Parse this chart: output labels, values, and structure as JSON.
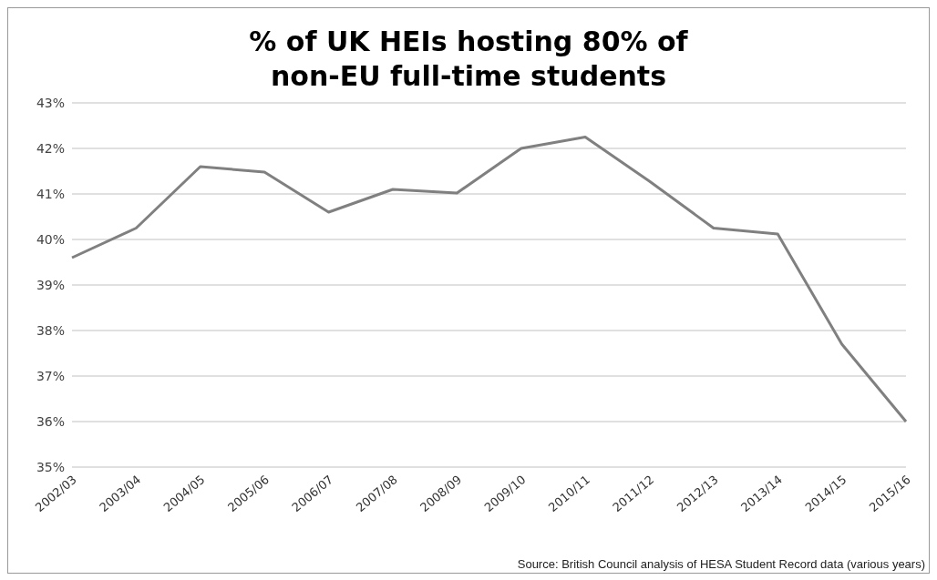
{
  "chart_data": {
    "type": "line",
    "title": "% of UK HEIs hosting 80% of non-EU full-time students",
    "categories": [
      "2002/03",
      "2003/04",
      "2004/05",
      "2005/06",
      "2006/07",
      "2007/08",
      "2008/09",
      "2009/10",
      "2010/11",
      "2011/12",
      "2012/13",
      "2013/14",
      "2014/15",
      "2015/16"
    ],
    "series": [
      {
        "color": "#808080",
        "values": [
          39.6,
          40.25,
          41.6,
          41.48,
          40.6,
          41.1,
          41.02,
          42.0,
          42.25,
          41.28,
          40.25,
          40.12,
          37.7,
          36.0
        ]
      }
    ],
    "ylim": [
      35,
      43
    ],
    "yticks": [
      {
        "value": 35,
        "label": "35%"
      },
      {
        "value": 36,
        "label": "36%"
      },
      {
        "value": 37,
        "label": "37%"
      },
      {
        "value": 38,
        "label": "38%"
      },
      {
        "value": 39,
        "label": "39%"
      },
      {
        "value": 40,
        "label": "40%"
      },
      {
        "value": 41,
        "label": "41%"
      },
      {
        "value": 42,
        "label": "42%"
      },
      {
        "value": 43,
        "label": "43%"
      }
    ],
    "grid": "y",
    "marker": "none",
    "line_style": "solid",
    "legend": false,
    "annotations": [
      "Source: British Council analysis of HESA Student Record data (various years)"
    ]
  }
}
